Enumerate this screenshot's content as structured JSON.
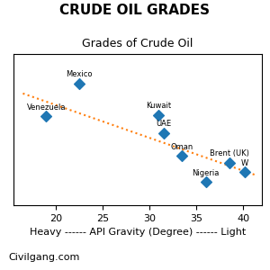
{
  "chart_data": {
    "type": "scatter",
    "title": "CRUDE OIL GRADES",
    "subtitle": "Grades of Crude Oil",
    "xlabel": "Heavy ------ API Gravity (Degree) ------ Light",
    "annotations": [
      "Civilgang.com"
    ],
    "series": [
      {
        "type": "scatter",
        "marker": "diamond",
        "labels": [
          "Venezuela",
          "Mexico",
          "Kuwait",
          "UAE",
          "Oman",
          "Brent (UK)",
          "Nigeria",
          "W"
        ],
        "x": [
          19.0,
          22.5,
          31.0,
          31.5,
          33.5,
          38.5,
          36.0,
          40.2
        ],
        "values": [
          62,
          82,
          63,
          52,
          38,
          34,
          22,
          28
        ]
      },
      {
        "type": "line",
        "line_style": "dotted",
        "x": [
          16.5,
          41.5
        ],
        "values": [
          76,
          26
        ]
      }
    ],
    "xlim": [
      15.5,
      42
    ],
    "ylim": [
      8,
      100
    ],
    "xticks": [
      20,
      25,
      30,
      35,
      40
    ],
    "tick_labels": "x"
  }
}
